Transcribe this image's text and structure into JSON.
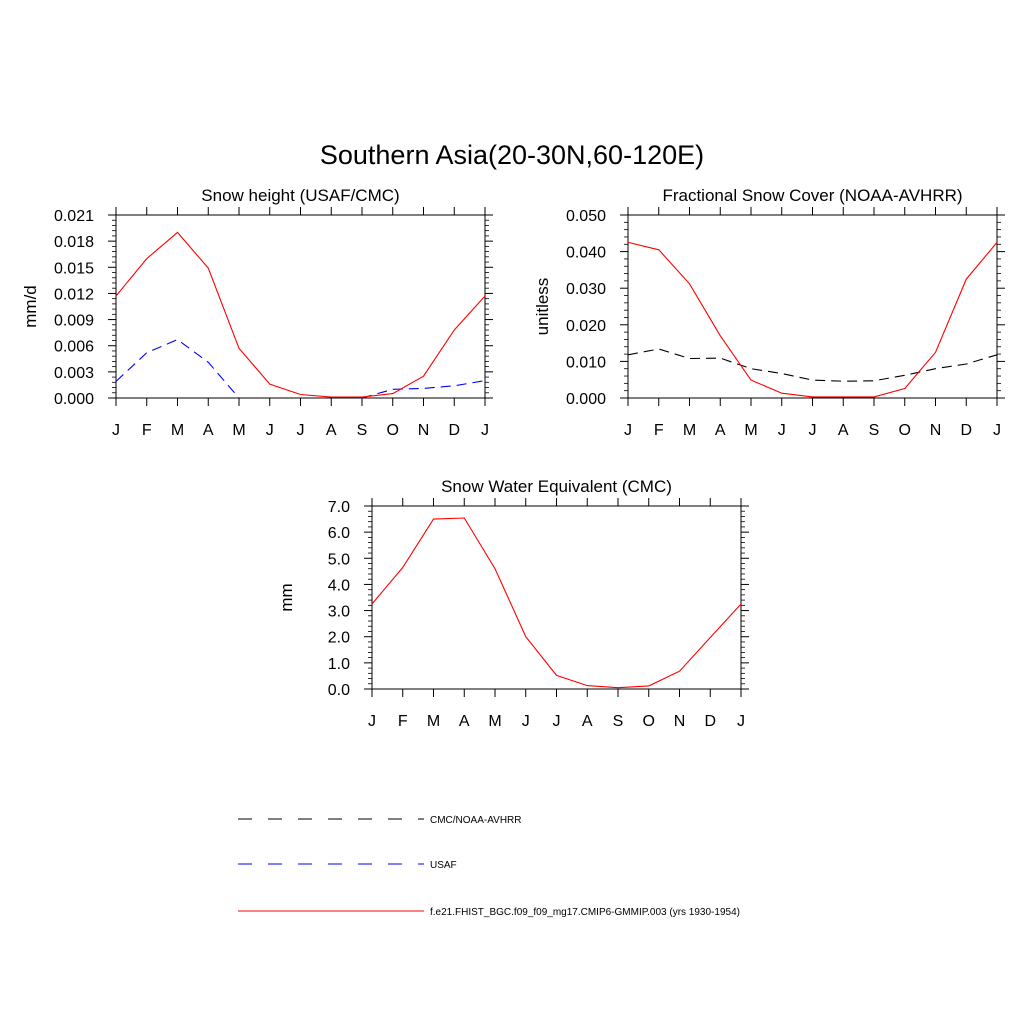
{
  "figure": {
    "title": "Southern Asia(20-30N,60-120E)"
  },
  "legend": [
    {
      "label": "CMC/NOAA-AVHRR",
      "color": "#000000",
      "style": "dashed"
    },
    {
      "label": "USAF",
      "color": "#0000ff",
      "style": "dashed"
    },
    {
      "label": "f.e21.FHIST_BGC.f09_f09_mg17.CMIP6-GMMIP.003 (yrs 1930-1954)",
      "color": "#ff0000",
      "style": "solid"
    }
  ],
  "chart_data": [
    {
      "type": "line",
      "title": "Snow height (USAF/CMC)",
      "xlabel": "",
      "ylabel": "mm/d",
      "categories": [
        "J",
        "F",
        "M",
        "A",
        "M",
        "J",
        "J",
        "A",
        "S",
        "O",
        "N",
        "D",
        "J"
      ],
      "ylim": [
        0,
        0.021
      ],
      "yticks": [
        "0.000",
        "0.003",
        "0.006",
        "0.009",
        "0.012",
        "0.015",
        "0.018",
        "0.021"
      ],
      "grid": false,
      "series": [
        {
          "name": "USAF",
          "color": "#0000ff",
          "style": "dashed",
          "values": [
            0.0019,
            0.0052,
            0.0067,
            0.0041,
            0.0,
            null,
            null,
            null,
            0.0,
            0.001,
            0.0011,
            0.0014,
            0.002
          ]
        },
        {
          "name": "f.e21.FHIST_BGC.f09_f09_mg17.CMIP6-GMMIP.003 (yrs 1930-1954)",
          "color": "#ff0000",
          "style": "solid",
          "values": [
            0.0117,
            0.016,
            0.019,
            0.0149,
            0.0057,
            0.0016,
            0.0004,
            0.0001,
            0.0001,
            0.0005,
            0.0025,
            0.0078,
            0.0117
          ]
        }
      ]
    },
    {
      "type": "line",
      "title": "Fractional Snow Cover (NOAA-AVHRR)",
      "xlabel": "",
      "ylabel": "unitless",
      "categories": [
        "J",
        "F",
        "M",
        "A",
        "M",
        "J",
        "J",
        "A",
        "S",
        "O",
        "N",
        "D",
        "J"
      ],
      "ylim": [
        0,
        0.05
      ],
      "yticks": [
        "0.000",
        "0.010",
        "0.020",
        "0.030",
        "0.040",
        "0.050"
      ],
      "grid": false,
      "series": [
        {
          "name": "CMC/NOAA-AVHRR",
          "color": "#000000",
          "style": "dashed",
          "values": [
            0.0118,
            0.0134,
            0.0108,
            0.0109,
            0.008,
            0.0067,
            0.0049,
            0.0046,
            0.0047,
            0.0062,
            0.008,
            0.0093,
            0.0118
          ]
        },
        {
          "name": "f.e21.FHIST_BGC.f09_f09_mg17.CMIP6-GMMIP.003 (yrs 1930-1954)",
          "color": "#ff0000",
          "style": "solid",
          "values": [
            0.0425,
            0.0405,
            0.0312,
            0.017,
            0.0049,
            0.0013,
            0.0003,
            0.0003,
            0.0003,
            0.0026,
            0.0125,
            0.0325,
            0.0425
          ]
        }
      ]
    },
    {
      "type": "line",
      "title": "Snow Water Equivalent (CMC)",
      "xlabel": "",
      "ylabel": "mm",
      "categories": [
        "J",
        "F",
        "M",
        "A",
        "M",
        "J",
        "J",
        "A",
        "S",
        "O",
        "N",
        "D",
        "J"
      ],
      "ylim": [
        0,
        7
      ],
      "yticks": [
        "0.0",
        "1.0",
        "2.0",
        "3.0",
        "4.0",
        "5.0",
        "6.0",
        "7.0"
      ],
      "grid": false,
      "series": [
        {
          "name": "CMC/NOAA-AVHRR",
          "color": "#000000",
          "style": "dashed",
          "values": [
            0,
            0,
            0,
            0,
            0,
            0,
            0,
            0,
            0,
            0,
            0,
            0,
            0
          ]
        },
        {
          "name": "f.e21.FHIST_BGC.f09_f09_mg17.CMIP6-GMMIP.003 (yrs 1930-1954)",
          "color": "#ff0000",
          "style": "solid",
          "values": [
            3.25,
            4.65,
            6.5,
            6.54,
            4.6,
            2.0,
            0.52,
            0.13,
            0.05,
            0.12,
            0.68,
            1.97,
            3.25
          ]
        }
      ]
    }
  ]
}
